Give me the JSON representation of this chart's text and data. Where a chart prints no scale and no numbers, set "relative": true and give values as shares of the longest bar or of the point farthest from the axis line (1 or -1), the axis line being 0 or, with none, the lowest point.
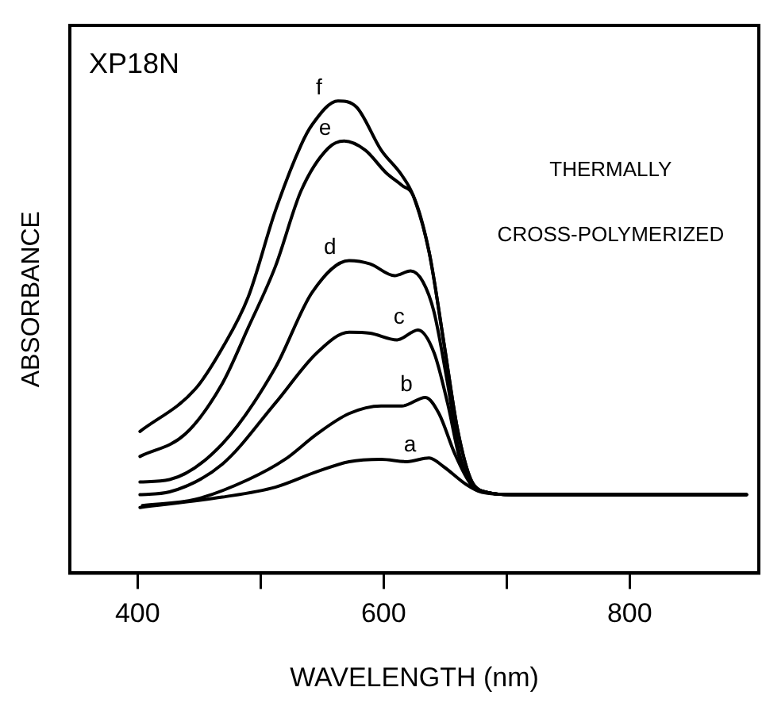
{
  "chart_data": {
    "type": "line",
    "xlabel": "WAVELENGTH (nm)",
    "ylabel": "ABSORBANCE",
    "relative": true,
    "annotations": [
      "XP18N",
      "THERMALLY",
      "CROSS-POLYMERIZED"
    ],
    "xlim": [
      345,
      905
    ],
    "xticks": [
      400,
      {
        "value": 500,
        "label": null
      },
      600,
      {
        "value": 700,
        "label": null
      },
      800
    ],
    "grid": false,
    "legend": false,
    "marker": "none",
    "line_style": "solid",
    "series": [
      {
        "name": "a",
        "color": "#000000",
        "x": [
          402,
          469,
          512,
          546,
          572,
          598,
          619,
          637,
          649,
          667,
          680,
          705,
          895
        ],
        "values": [
          0.139,
          0.161,
          0.182,
          0.215,
          0.236,
          0.241,
          0.236,
          0.244,
          0.225,
          0.188,
          0.171,
          0.166,
          0.166
        ]
      },
      {
        "name": "b",
        "color": "#000000",
        "x": [
          404,
          447,
          490,
          520,
          546,
          572,
          598,
          615,
          634,
          645,
          658,
          671,
          684,
          705,
          890
        ],
        "values": [
          0.143,
          0.156,
          0.198,
          0.241,
          0.295,
          0.338,
          0.354,
          0.354,
          0.372,
          0.338,
          0.252,
          0.188,
          0.171,
          0.166,
          0.166
        ]
      },
      {
        "name": "c",
        "color": "#000000",
        "x": [
          402,
          426,
          469,
          512,
          546,
          572,
          589,
          611,
          628,
          641,
          652,
          662,
          673,
          684,
          705,
          895
        ],
        "values": [
          0.166,
          0.172,
          0.231,
          0.36,
          0.467,
          0.51,
          0.508,
          0.494,
          0.515,
          0.467,
          0.36,
          0.241,
          0.182,
          0.171,
          0.166,
          0.166
        ]
      },
      {
        "name": "d",
        "color": "#000000",
        "x": [
          402,
          426,
          469,
          512,
          542,
          572,
          589,
          609,
          622,
          632,
          641,
          652,
          662,
          673,
          684,
          705,
          895
        ],
        "values": [
          0.193,
          0.198,
          0.274,
          0.435,
          0.595,
          0.662,
          0.655,
          0.63,
          0.64,
          0.617,
          0.553,
          0.402,
          0.25,
          0.188,
          0.171,
          0.166,
          0.166
        ]
      },
      {
        "name": "e",
        "color": "#000000",
        "x": [
          402,
          439,
          469,
          490,
          512,
          533,
          555,
          568,
          585,
          602,
          615,
          624,
          637,
          649,
          660,
          671,
          684,
          705,
          895
        ],
        "values": [
          0.247,
          0.295,
          0.402,
          0.52,
          0.649,
          0.81,
          0.9,
          0.915,
          0.896,
          0.848,
          0.821,
          0.8,
          0.68,
          0.488,
          0.306,
          0.198,
          0.171,
          0.166,
          0.166
        ]
      },
      {
        "name": "f",
        "color": "#000000",
        "x": [
          402,
          447,
          469,
          490,
          512,
          533,
          542,
          563,
          578,
          598,
          615,
          624,
          637,
          649,
          660,
          671,
          684,
          705,
          895
        ],
        "values": [
          0.3,
          0.39,
          0.477,
          0.585,
          0.767,
          0.907,
          0.95,
          1.0,
          0.987,
          0.896,
          0.842,
          0.8,
          0.68,
          0.488,
          0.306,
          0.198,
          0.171,
          0.166,
          0.166
        ]
      }
    ]
  }
}
